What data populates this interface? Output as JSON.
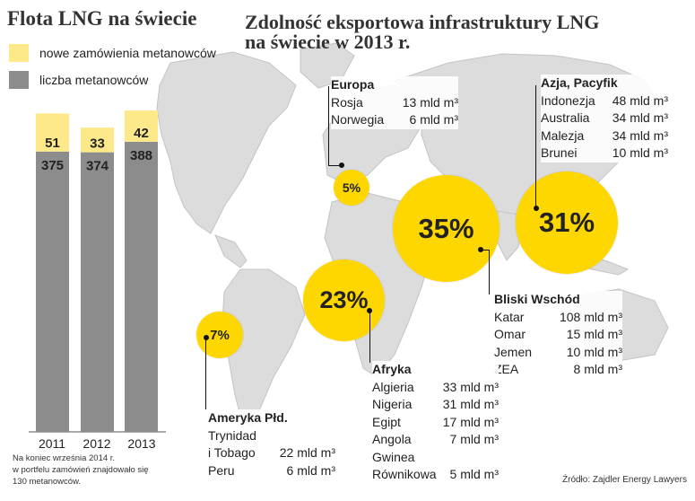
{
  "left_title": "Flota LNG na świecie",
  "main_title_line1": "Zdolność eksportowa infrastruktury LNG",
  "main_title_line2": "na świecie w 2013 r.",
  "legend": {
    "new_orders": "nowe zamówienia metanowców",
    "count": "liczba metanowców"
  },
  "colors": {
    "new_orders": "#fde88a",
    "count": "#8c8c8c",
    "bubble": "#ffd700",
    "map": "#dcdcdc"
  },
  "chart_data": [
    {
      "type": "bar",
      "stacked": true,
      "categories": [
        "2011",
        "2012",
        "2013"
      ],
      "series": [
        {
          "name": "liczba metanowców",
          "values": [
            375,
            374,
            388
          ]
        },
        {
          "name": "nowe zamówienia metanowców",
          "values": [
            51,
            33,
            42
          ]
        }
      ],
      "ylim": [
        0,
        430
      ],
      "grid": false,
      "legend": "top-left"
    },
    {
      "type": "bubble",
      "categories": [
        "Europa",
        "Azja, Pacyfik",
        "Bliski Wschód",
        "Afryka",
        "Ameryka Płd."
      ],
      "labels": [
        "5%",
        "31%",
        "35%",
        "23%",
        "7%"
      ],
      "values": [
        5,
        31,
        35,
        23,
        7
      ]
    }
  ],
  "fleet_note": [
    "Na koniec września 2014 r.",
    "w portfelu zamówień znajdowało się",
    "130 metanowców."
  ],
  "regions": {
    "europe": {
      "title": "Europa",
      "rows": [
        [
          "Rosja",
          "13 mld m³"
        ],
        [
          "Norwegia",
          "6 mld m³"
        ]
      ]
    },
    "asia": {
      "title": "Azja, Pacyfik",
      "rows": [
        [
          "Indonezja",
          "48 mld m³"
        ],
        [
          "Australia",
          "34 mld m³"
        ],
        [
          "Malezja",
          "34 mld m³"
        ],
        [
          "Brunei",
          "10 mld m³"
        ]
      ]
    },
    "mideast": {
      "title": "Bliski Wschód",
      "rows": [
        [
          "Katar",
          "108 mld m³"
        ],
        [
          "Omar",
          "15 mld m³"
        ],
        [
          "Jemen",
          "10 mld m³"
        ],
        [
          "ZEA",
          "8 mld m³"
        ]
      ]
    },
    "africa": {
      "title": "Afryka",
      "rows": [
        [
          "Algieria",
          "33 mld m³"
        ],
        [
          "Nigeria",
          "31 mld m³"
        ],
        [
          "Egipt",
          "17 mld m³"
        ],
        [
          "Angola",
          "7 mld m³"
        ],
        [
          "Gwinea",
          ""
        ],
        [
          "Równikowa",
          "5 mld m³"
        ]
      ]
    },
    "samerica": {
      "title": "Ameryka Płd.",
      "rows": [
        [
          "Trynidad",
          ""
        ],
        [
          "i Tobago",
          "22 mld m³"
        ],
        [
          "Peru",
          "6 mld m³"
        ]
      ]
    }
  },
  "source": "Źródło: Zajdler Energy Lawyers"
}
